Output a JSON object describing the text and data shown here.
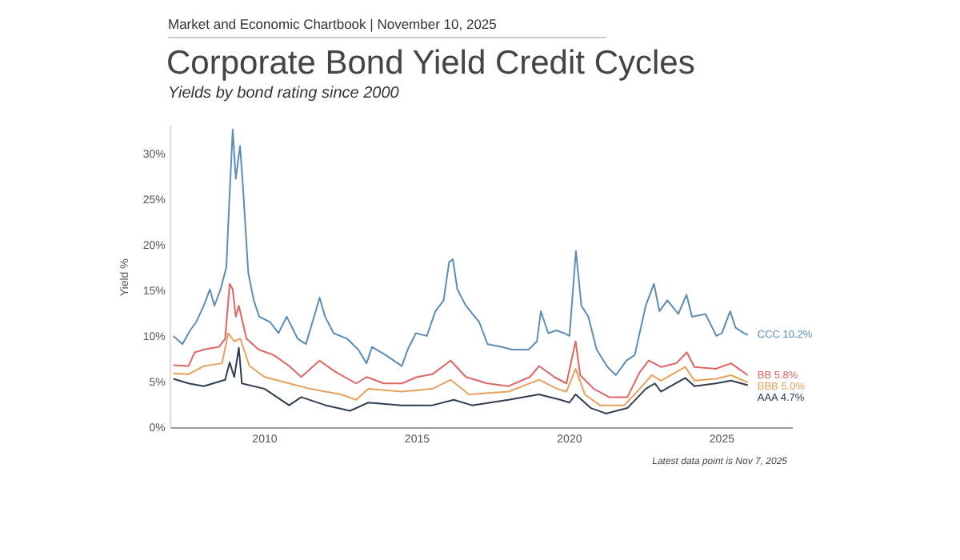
{
  "chart_data": {
    "type": "line",
    "title": "Corporate Bond Yield Credit Cycles",
    "subtitle": "Yields by bond rating since 2000",
    "ylabel": "Yield %",
    "annotations": [
      "Market and Economic Chartbook | November 10, 2025",
      "Latest data point is Nov 7, 2025",
      "CCC 10.2%",
      "BB 5.8%",
      "BBB 5.0%",
      "AAA 4.7%"
    ],
    "xlim": [
      2006.9,
      2027.3
    ],
    "xticks": [
      2010,
      2015,
      2020,
      2025
    ],
    "ylim": [
      0,
      33
    ],
    "yticks": [
      {
        "value": 0,
        "label": "0%"
      },
      {
        "value": 5,
        "label": "5%"
      },
      {
        "value": 10,
        "label": "10%"
      },
      {
        "value": 15,
        "label": "15%"
      },
      {
        "value": 20,
        "label": "20%"
      },
      {
        "value": 25,
        "label": "25%"
      },
      {
        "value": 30,
        "label": "30%"
      }
    ],
    "legend": false,
    "series": [
      {
        "color": "#5b8db8",
        "x": [
          2007.0,
          2007.3,
          2007.55,
          2007.75,
          2008.0,
          2008.2,
          2008.35,
          2008.55,
          2008.74,
          2008.83,
          2008.95,
          2009.05,
          2009.19,
          2009.28,
          2009.46,
          2009.64,
          2009.82,
          2010.18,
          2010.45,
          2010.72,
          2011.08,
          2011.35,
          2011.62,
          2011.8,
          2011.98,
          2012.26,
          2012.7,
          2013.07,
          2013.34,
          2013.52,
          2013.97,
          2014.5,
          2014.69,
          2014.96,
          2015.32,
          2015.6,
          2015.87,
          2016.05,
          2016.17,
          2016.32,
          2016.6,
          2017.04,
          2017.31,
          2017.76,
          2018.12,
          2018.66,
          2018.93,
          2019.06,
          2019.3,
          2019.57,
          2019.82,
          2020.0,
          2020.21,
          2020.39,
          2020.62,
          2020.89,
          2021.25,
          2021.52,
          2021.87,
          2022.14,
          2022.5,
          2022.77,
          2022.95,
          2023.21,
          2023.57,
          2023.84,
          2024.02,
          2024.46,
          2024.82,
          2025.0,
          2025.27,
          2025.45,
          2025.72,
          2025.85
        ],
        "values": [
          10.1,
          9.2,
          10.7,
          11.6,
          13.4,
          15.2,
          13.4,
          15.2,
          17.6,
          24.3,
          32.7,
          27.3,
          30.9,
          26.7,
          17.0,
          14.0,
          12.2,
          11.6,
          10.4,
          12.2,
          9.8,
          9.2,
          12.2,
          14.3,
          12.2,
          10.4,
          9.8,
          8.6,
          7.1,
          8.9,
          8.0,
          6.8,
          8.6,
          10.4,
          10.1,
          12.8,
          14.0,
          18.2,
          18.5,
          15.2,
          13.4,
          11.6,
          9.2,
          8.9,
          8.6,
          8.6,
          9.5,
          12.8,
          10.4,
          10.7,
          10.4,
          10.1,
          19.4,
          13.4,
          12.2,
          8.6,
          6.7,
          5.8,
          7.4,
          8.0,
          13.4,
          15.8,
          12.8,
          14.0,
          12.5,
          14.6,
          12.2,
          12.5,
          10.1,
          10.4,
          12.8,
          11.0,
          10.4,
          10.2
        ]
      },
      {
        "color": "#e06464",
        "x": [
          2007.0,
          2007.5,
          2007.7,
          2008.0,
          2008.5,
          2008.7,
          2008.85,
          2008.95,
          2009.05,
          2009.15,
          2009.4,
          2009.8,
          2010.3,
          2010.8,
          2011.2,
          2011.8,
          2012.3,
          2013.0,
          2013.35,
          2013.9,
          2014.5,
          2015.0,
          2015.5,
          2016.1,
          2016.6,
          2017.3,
          2018.0,
          2018.7,
          2019.0,
          2019.5,
          2019.9,
          2020.2,
          2020.35,
          2020.8,
          2021.3,
          2021.9,
          2022.3,
          2022.6,
          2023.0,
          2023.5,
          2023.85,
          2024.1,
          2024.8,
          2025.3,
          2025.85
        ],
        "values": [
          6.9,
          6.8,
          8.3,
          8.6,
          8.9,
          9.8,
          15.8,
          15.2,
          12.2,
          13.4,
          9.8,
          8.6,
          8.0,
          6.8,
          5.6,
          7.4,
          6.2,
          4.9,
          5.6,
          4.9,
          4.9,
          5.6,
          5.9,
          7.4,
          5.6,
          4.9,
          4.6,
          5.6,
          6.8,
          5.6,
          4.9,
          9.5,
          5.8,
          4.3,
          3.4,
          3.4,
          6.1,
          7.4,
          6.7,
          7.1,
          8.3,
          6.7,
          6.5,
          7.1,
          5.8
        ]
      },
      {
        "color": "#e8a05c",
        "x": [
          2007.0,
          2007.5,
          2008.0,
          2008.6,
          2008.8,
          2009.0,
          2009.2,
          2009.5,
          2010.0,
          2010.8,
          2011.5,
          2012.5,
          2013.0,
          2013.4,
          2014.5,
          2015.5,
          2016.1,
          2016.7,
          2018.0,
          2019.0,
          2019.6,
          2019.9,
          2020.2,
          2020.5,
          2021.0,
          2021.8,
          2022.3,
          2022.7,
          2023.0,
          2023.8,
          2024.1,
          2024.8,
          2025.3,
          2025.85
        ],
        "values": [
          6.0,
          5.9,
          6.8,
          7.1,
          10.4,
          9.5,
          9.8,
          6.8,
          5.6,
          4.9,
          4.3,
          3.7,
          3.1,
          4.3,
          4.0,
          4.3,
          5.3,
          3.7,
          4.0,
          5.3,
          4.3,
          4.0,
          6.5,
          3.7,
          2.5,
          2.5,
          4.3,
          5.8,
          5.2,
          6.7,
          5.2,
          5.4,
          5.8,
          5.0
        ]
      },
      {
        "color": "#2f3e4e",
        "x": [
          2007.0,
          2007.5,
          2008.0,
          2008.7,
          2008.85,
          2009.0,
          2009.15,
          2009.25,
          2010.0,
          2010.8,
          2011.2,
          2012.0,
          2012.8,
          2013.4,
          2014.5,
          2015.5,
          2016.2,
          2016.8,
          2018.0,
          2019.0,
          2019.7,
          2020.0,
          2020.2,
          2020.7,
          2021.2,
          2021.9,
          2022.5,
          2022.8,
          2023.0,
          2023.8,
          2024.1,
          2024.8,
          2025.3,
          2025.85
        ],
        "values": [
          5.4,
          4.9,
          4.6,
          5.3,
          7.2,
          5.6,
          8.8,
          4.9,
          4.3,
          2.5,
          3.4,
          2.5,
          1.9,
          2.8,
          2.5,
          2.5,
          3.1,
          2.5,
          3.1,
          3.7,
          3.1,
          2.8,
          3.7,
          2.2,
          1.6,
          2.2,
          4.3,
          4.9,
          4.0,
          5.5,
          4.6,
          4.9,
          5.2,
          4.7
        ]
      }
    ]
  }
}
